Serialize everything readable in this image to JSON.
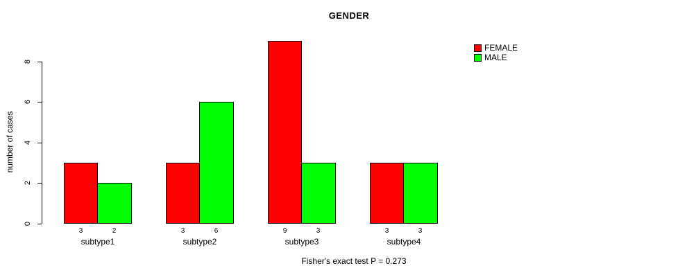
{
  "chart_data": {
    "type": "bar",
    "title": "GENDER",
    "ylabel": "number of cases",
    "xlabel": "",
    "categories": [
      "subtype1",
      "subtype2",
      "subtype3",
      "subtype4"
    ],
    "series": [
      {
        "name": "FEMALE",
        "color": "#ff0000",
        "values": [
          3,
          3,
          9,
          3
        ]
      },
      {
        "name": "MALE",
        "color": "#00ff00",
        "values": [
          2,
          6,
          3,
          3
        ]
      }
    ],
    "yticks": [
      0,
      2,
      4,
      6,
      8
    ],
    "ylim": [
      0,
      9
    ],
    "grid": false,
    "legend_position": "top-right",
    "bar_value_labels": true,
    "annotation": "Fisher's exact test P = 0.273"
  }
}
